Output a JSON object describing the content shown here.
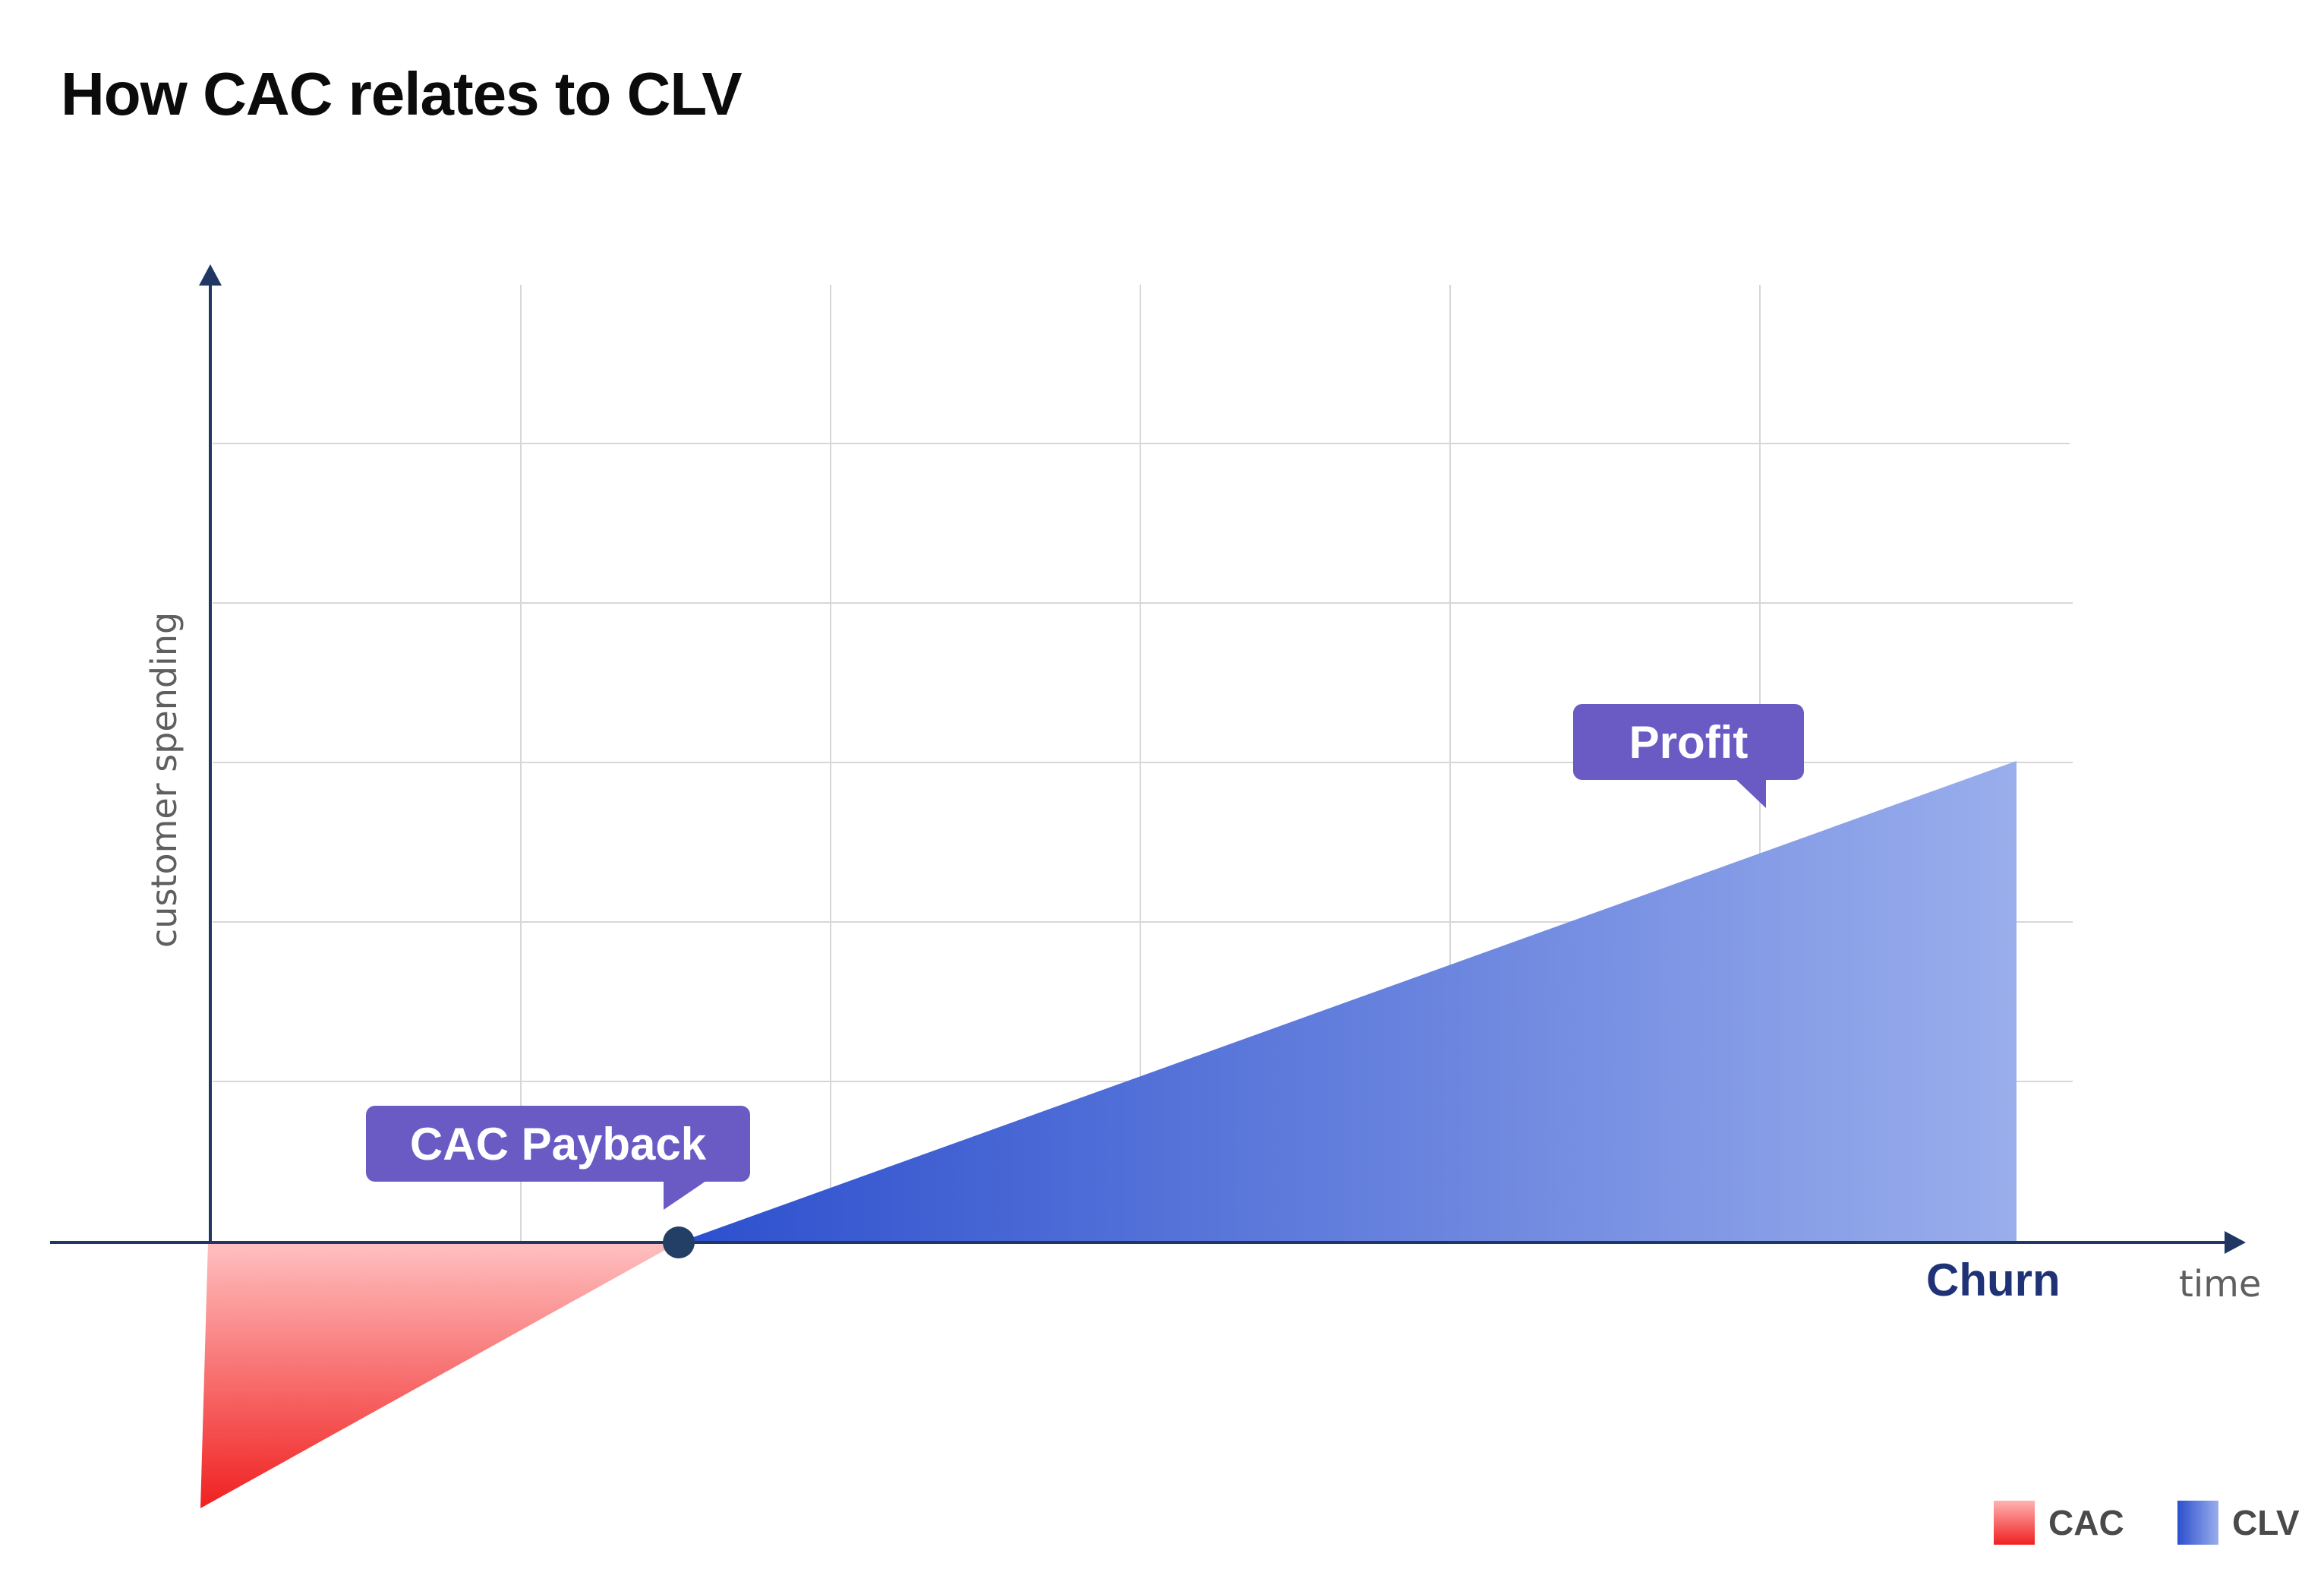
{
  "title": "How CAC relates to CLV",
  "axes": {
    "y_label": "customer spending",
    "x_label": "time"
  },
  "annotations": {
    "payback": "CAC Payback",
    "profit": "Profit",
    "churn": "Churn"
  },
  "legend": [
    {
      "label": "CAC",
      "color_start": "#ffb3b3",
      "color_end": "#f02020"
    },
    {
      "label": "CLV",
      "color_start": "#2c4fcd",
      "color_end": "#9aaeec"
    }
  ],
  "colors": {
    "axis": "#1f3762",
    "grid": "#d7d7d7",
    "callout": "#6a5ac4",
    "churn_text": "#1f3275",
    "label_gray": "#5f5f5f",
    "cac_light": "#ffc0c0",
    "cac_dark": "#f02020",
    "clv_dark": "#2c4fcd",
    "clv_light": "#9aaeec"
  }
}
